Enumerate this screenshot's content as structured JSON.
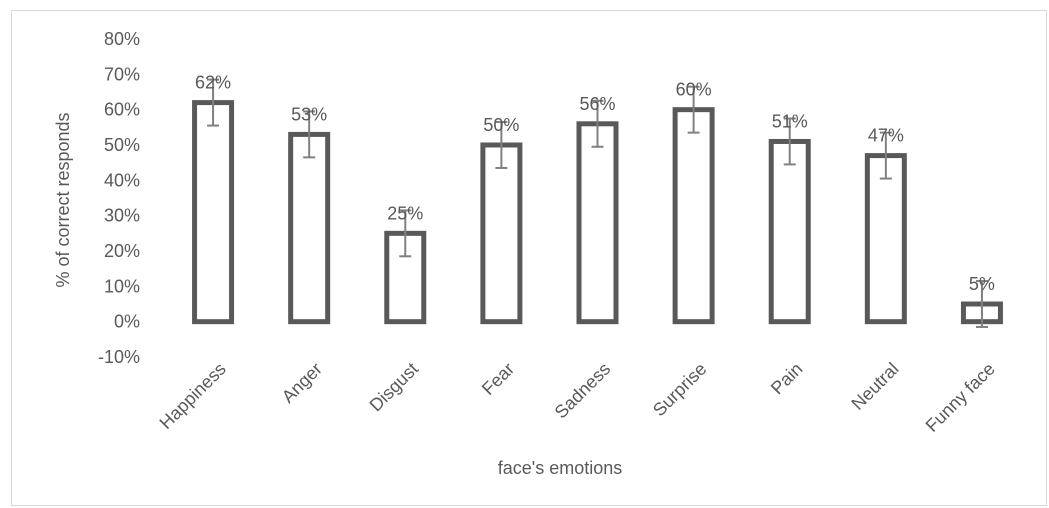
{
  "chart_data": {
    "type": "bar",
    "title": "",
    "xlabel": "face's emotions",
    "ylabel": "% of correct responds",
    "ylim": [
      -10,
      80
    ],
    "yticks": [
      -10,
      0,
      10,
      20,
      30,
      40,
      50,
      60,
      70,
      80
    ],
    "ytick_labels": [
      "-10%",
      "0%",
      "10%",
      "20%",
      "30%",
      "40%",
      "50%",
      "60%",
      "70%",
      "80%"
    ],
    "categories": [
      "Happiness",
      "Anger",
      "Disgust",
      "Fear",
      "Sadness",
      "Surprise",
      "Pain",
      "Neutral",
      "Funny face"
    ],
    "values": [
      62,
      53,
      25,
      50,
      56,
      60,
      51,
      47,
      5
    ],
    "value_labels": [
      "62%",
      "53%",
      "25%",
      "50%",
      "56%",
      "60%",
      "51%",
      "47%",
      "5%"
    ],
    "error": [
      6.5,
      6.5,
      6.5,
      6.5,
      6.5,
      6.5,
      6.5,
      6.5,
      6.5
    ],
    "grid": false,
    "legend": "none",
    "colors": {
      "bar_stroke": "#595959",
      "bar_fill": "#ffffff",
      "error_bar": "#808080",
      "text": "#595959",
      "frame": "#d9d9d9"
    }
  }
}
